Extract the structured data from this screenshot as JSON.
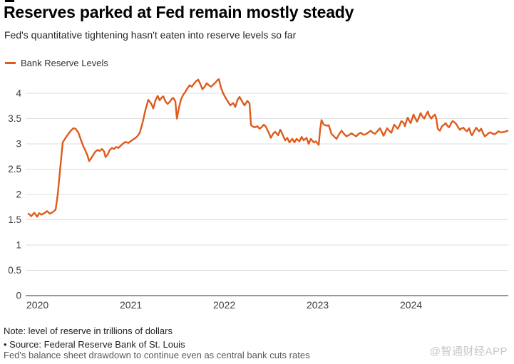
{
  "header": {
    "title": "Reserves parked at Fed remain mostly steady",
    "subtitle": "Fed's quantitative tightening hasn't eaten into reserve levels so far"
  },
  "legend": {
    "label": "Bank Reserve Levels",
    "color": "#e05a1c"
  },
  "colors": {
    "line": "#e05a1c",
    "gridline": "#dcdcdc",
    "baseline": "#98989a",
    "axis_text": "#3d3d3d"
  },
  "footer": {
    "note": "Note: level of reserve in trillions of dollars",
    "source": "• Source: Federal Reserve Bank of St. Louis",
    "caption": "Fed's balance sheet drawdown to continue even as central bank cuts rates",
    "watermark": "@智通财经APP"
  },
  "chart_data": {
    "type": "line",
    "title": "Reserves parked at Fed remain mostly steady",
    "subtitle": "Fed's quantitative tightening hasn't eaten into reserve levels so far",
    "xlabel": "",
    "ylabel": "",
    "unit_note": "trillions of dollars",
    "grid": "horizontal",
    "legend_position": "top-left",
    "x_domain": [
      2020,
      2025.16
    ],
    "y_domain": [
      0,
      4.5
    ],
    "x_ticks": [
      2020,
      2021,
      2022,
      2023,
      2024
    ],
    "x_tick_labels": [
      "2020",
      "2021",
      "2022",
      "2023",
      "2024"
    ],
    "y_ticks": [
      0,
      0.5,
      1,
      1.5,
      2,
      2.5,
      3,
      3.5,
      4
    ],
    "y_tick_labels": [
      "0",
      "0.5",
      "1",
      "1.5",
      "2",
      "2.5",
      "3",
      "3.5",
      "4"
    ],
    "series": [
      {
        "name": "Bank Reserve Levels",
        "color": "#e05a1c",
        "points": [
          [
            2020.023,
            1.62
          ],
          [
            2020.053,
            1.57
          ],
          [
            2020.084,
            1.64
          ],
          [
            2020.115,
            1.56
          ],
          [
            2020.137,
            1.63
          ],
          [
            2020.16,
            1.6
          ],
          [
            2020.191,
            1.63
          ],
          [
            2020.221,
            1.67
          ],
          [
            2020.252,
            1.62
          ],
          [
            2020.282,
            1.65
          ],
          [
            2020.313,
            1.7
          ],
          [
            2020.336,
            2.0
          ],
          [
            2020.359,
            2.45
          ],
          [
            2020.389,
            3.03
          ],
          [
            2020.42,
            3.12
          ],
          [
            2020.45,
            3.2
          ],
          [
            2020.481,
            3.27
          ],
          [
            2020.504,
            3.31
          ],
          [
            2020.527,
            3.3
          ],
          [
            2020.557,
            3.22
          ],
          [
            2020.588,
            3.06
          ],
          [
            2020.611,
            2.95
          ],
          [
            2020.634,
            2.86
          ],
          [
            2020.656,
            2.76
          ],
          [
            2020.672,
            2.66
          ],
          [
            2020.695,
            2.72
          ],
          [
            2020.718,
            2.79
          ],
          [
            2020.74,
            2.85
          ],
          [
            2020.763,
            2.88
          ],
          [
            2020.786,
            2.86
          ],
          [
            2020.809,
            2.9
          ],
          [
            2020.832,
            2.85
          ],
          [
            2020.847,
            2.74
          ],
          [
            2020.87,
            2.79
          ],
          [
            2020.893,
            2.88
          ],
          [
            2020.916,
            2.92
          ],
          [
            2020.939,
            2.9
          ],
          [
            2020.962,
            2.94
          ],
          [
            2020.985,
            2.92
          ],
          [
            2021.008,
            2.96
          ],
          [
            2021.031,
            3.0
          ],
          [
            2021.061,
            3.04
          ],
          [
            2021.092,
            3.02
          ],
          [
            2021.122,
            3.06
          ],
          [
            2021.153,
            3.1
          ],
          [
            2021.183,
            3.14
          ],
          [
            2021.214,
            3.22
          ],
          [
            2021.244,
            3.42
          ],
          [
            2021.275,
            3.67
          ],
          [
            2021.305,
            3.87
          ],
          [
            2021.336,
            3.8
          ],
          [
            2021.359,
            3.7
          ],
          [
            2021.382,
            3.86
          ],
          [
            2021.405,
            3.95
          ],
          [
            2021.427,
            3.86
          ],
          [
            2021.45,
            3.92
          ],
          [
            2021.466,
            3.94
          ],
          [
            2021.489,
            3.84
          ],
          [
            2021.511,
            3.79
          ],
          [
            2021.534,
            3.83
          ],
          [
            2021.557,
            3.89
          ],
          [
            2021.573,
            3.91
          ],
          [
            2021.595,
            3.84
          ],
          [
            2021.611,
            3.5
          ],
          [
            2021.634,
            3.72
          ],
          [
            2021.656,
            3.88
          ],
          [
            2021.679,
            3.97
          ],
          [
            2021.702,
            4.03
          ],
          [
            2021.725,
            4.1
          ],
          [
            2021.748,
            4.16
          ],
          [
            2021.771,
            4.13
          ],
          [
            2021.794,
            4.19
          ],
          [
            2021.817,
            4.24
          ],
          [
            2021.84,
            4.27
          ],
          [
            2021.863,
            4.18
          ],
          [
            2021.885,
            4.08
          ],
          [
            2021.908,
            4.13
          ],
          [
            2021.931,
            4.2
          ],
          [
            2021.954,
            4.16
          ],
          [
            2021.977,
            4.13
          ],
          [
            2022.0,
            4.17
          ],
          [
            2022.023,
            4.21
          ],
          [
            2022.046,
            4.26
          ],
          [
            2022.061,
            4.28
          ],
          [
            2022.084,
            4.11
          ],
          [
            2022.107,
            4.0
          ],
          [
            2022.137,
            3.9
          ],
          [
            2022.16,
            3.83
          ],
          [
            2022.183,
            3.76
          ],
          [
            2022.214,
            3.81
          ],
          [
            2022.237,
            3.73
          ],
          [
            2022.26,
            3.87
          ],
          [
            2022.282,
            3.93
          ],
          [
            2022.313,
            3.83
          ],
          [
            2022.336,
            3.76
          ],
          [
            2022.366,
            3.85
          ],
          [
            2022.389,
            3.8
          ],
          [
            2022.405,
            3.37
          ],
          [
            2022.427,
            3.34
          ],
          [
            2022.45,
            3.33
          ],
          [
            2022.473,
            3.35
          ],
          [
            2022.496,
            3.3
          ],
          [
            2022.519,
            3.33
          ],
          [
            2022.542,
            3.38
          ],
          [
            2022.565,
            3.34
          ],
          [
            2022.595,
            3.22
          ],
          [
            2022.618,
            3.12
          ],
          [
            2022.641,
            3.2
          ],
          [
            2022.664,
            3.24
          ],
          [
            2022.695,
            3.17
          ],
          [
            2022.718,
            3.28
          ],
          [
            2022.74,
            3.2
          ],
          [
            2022.771,
            3.07
          ],
          [
            2022.794,
            3.12
          ],
          [
            2022.817,
            3.03
          ],
          [
            2022.847,
            3.1
          ],
          [
            2022.87,
            3.03
          ],
          [
            2022.893,
            3.1
          ],
          [
            2022.924,
            3.05
          ],
          [
            2022.947,
            3.14
          ],
          [
            2022.969,
            3.07
          ],
          [
            2023.0,
            3.12
          ],
          [
            2023.023,
            3.0
          ],
          [
            2023.046,
            3.1
          ],
          [
            2023.076,
            3.03
          ],
          [
            2023.099,
            3.05
          ],
          [
            2023.13,
            2.98
          ],
          [
            2023.145,
            3.28
          ],
          [
            2023.16,
            3.47
          ],
          [
            2023.183,
            3.38
          ],
          [
            2023.214,
            3.36
          ],
          [
            2023.237,
            3.37
          ],
          [
            2023.267,
            3.2
          ],
          [
            2023.298,
            3.14
          ],
          [
            2023.321,
            3.1
          ],
          [
            2023.351,
            3.2
          ],
          [
            2023.374,
            3.26
          ],
          [
            2023.405,
            3.19
          ],
          [
            2023.427,
            3.15
          ],
          [
            2023.458,
            3.18
          ],
          [
            2023.481,
            3.21
          ],
          [
            2023.511,
            3.17
          ],
          [
            2023.534,
            3.15
          ],
          [
            2023.557,
            3.2
          ],
          [
            2023.58,
            3.22
          ],
          [
            2023.611,
            3.18
          ],
          [
            2023.634,
            3.19
          ],
          [
            2023.656,
            3.22
          ],
          [
            2023.687,
            3.26
          ],
          [
            2023.71,
            3.22
          ],
          [
            2023.733,
            3.2
          ],
          [
            2023.763,
            3.26
          ],
          [
            2023.786,
            3.31
          ],
          [
            2023.809,
            3.22
          ],
          [
            2023.824,
            3.16
          ],
          [
            2023.847,
            3.25
          ],
          [
            2023.863,
            3.31
          ],
          [
            2023.885,
            3.26
          ],
          [
            2023.908,
            3.22
          ],
          [
            2023.924,
            3.31
          ],
          [
            2023.939,
            3.38
          ],
          [
            2023.962,
            3.33
          ],
          [
            2023.977,
            3.3
          ],
          [
            2024.0,
            3.38
          ],
          [
            2024.015,
            3.45
          ],
          [
            2024.038,
            3.42
          ],
          [
            2024.053,
            3.35
          ],
          [
            2024.069,
            3.45
          ],
          [
            2024.084,
            3.52
          ],
          [
            2024.099,
            3.46
          ],
          [
            2024.115,
            3.41
          ],
          [
            2024.13,
            3.5
          ],
          [
            2024.145,
            3.58
          ],
          [
            2024.16,
            3.52
          ],
          [
            2024.183,
            3.44
          ],
          [
            2024.198,
            3.5
          ],
          [
            2024.221,
            3.61
          ],
          [
            2024.237,
            3.55
          ],
          [
            2024.26,
            3.5
          ],
          [
            2024.275,
            3.56
          ],
          [
            2024.298,
            3.64
          ],
          [
            2024.313,
            3.56
          ],
          [
            2024.336,
            3.5
          ],
          [
            2024.351,
            3.54
          ],
          [
            2024.374,
            3.58
          ],
          [
            2024.389,
            3.5
          ],
          [
            2024.405,
            3.3
          ],
          [
            2024.427,
            3.26
          ],
          [
            2024.45,
            3.35
          ],
          [
            2024.473,
            3.38
          ],
          [
            2024.489,
            3.41
          ],
          [
            2024.511,
            3.35
          ],
          [
            2024.527,
            3.33
          ],
          [
            2024.55,
            3.42
          ],
          [
            2024.565,
            3.45
          ],
          [
            2024.588,
            3.42
          ],
          [
            2024.603,
            3.39
          ],
          [
            2024.626,
            3.32
          ],
          [
            2024.641,
            3.28
          ],
          [
            2024.664,
            3.31
          ],
          [
            2024.679,
            3.32
          ],
          [
            2024.702,
            3.27
          ],
          [
            2024.718,
            3.25
          ],
          [
            2024.74,
            3.31
          ],
          [
            2024.756,
            3.22
          ],
          [
            2024.771,
            3.17
          ],
          [
            2024.794,
            3.25
          ],
          [
            2024.817,
            3.32
          ],
          [
            2024.832,
            3.28
          ],
          [
            2024.847,
            3.25
          ],
          [
            2024.87,
            3.3
          ],
          [
            2024.893,
            3.2
          ],
          [
            2024.908,
            3.15
          ],
          [
            2024.931,
            3.18
          ],
          [
            2024.947,
            3.21
          ],
          [
            2024.969,
            3.23
          ],
          [
            2024.985,
            3.21
          ],
          [
            2025.008,
            3.19
          ],
          [
            2025.031,
            3.21
          ],
          [
            2025.053,
            3.25
          ],
          [
            2025.076,
            3.23
          ],
          [
            2025.099,
            3.23
          ],
          [
            2025.122,
            3.24
          ],
          [
            2025.153,
            3.26
          ]
        ]
      }
    ]
  }
}
